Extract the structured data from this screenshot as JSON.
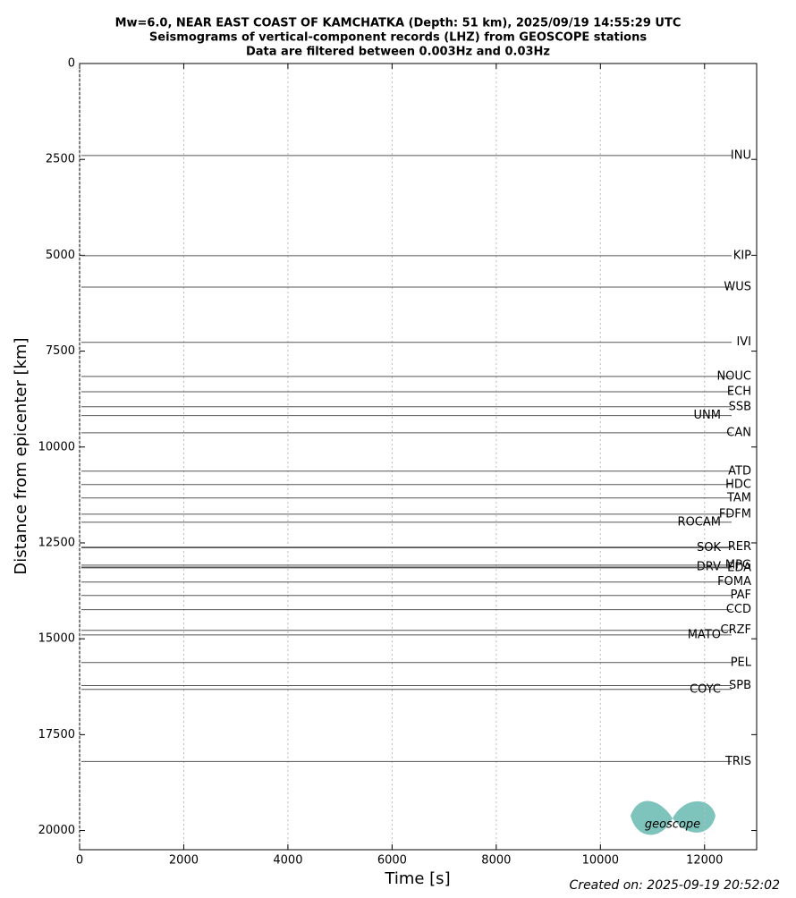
{
  "chart_data": {
    "type": "seismogram",
    "title_lines": [
      "Mw=6.0, NEAR EAST COAST OF KAMCHATKA (Depth: 51 km), 2025/09/19 14:55:29 UTC",
      "Seismograms of vertical-component records (LHZ) from GEOSCOPE stations",
      "Data are filtered between 0.003Hz and 0.03Hz"
    ],
    "xlabel": "Time [s]",
    "ylabel": "Distance from epicenter [km]",
    "xlim": [
      0,
      13000
    ],
    "xticks": [
      0,
      2000,
      4000,
      6000,
      8000,
      10000,
      12000
    ],
    "ylim": [
      20500,
      0
    ],
    "yticks": [
      0,
      2500,
      5000,
      7500,
      10000,
      12500,
      15000,
      17500,
      20000
    ],
    "grid": true,
    "color": "#555555",
    "stations": [
      "INU",
      "KIP",
      "WUS",
      "IVI",
      "NOUC",
      "ECH",
      "SSB",
      "UNM",
      "CAN",
      "ATD",
      "HDC",
      "TAM",
      "FDFM",
      "ROCAM",
      "RER",
      "SOK",
      "MPG",
      "DRV",
      "EDA",
      "FOMA",
      "PAF",
      "CCD",
      "CRZF",
      "MATO",
      "PEL",
      "SPB",
      "COYC",
      "TRIS"
    ],
    "distances": [
      2400,
      5010,
      5830,
      7270,
      8160,
      8560,
      8950,
      9180,
      9630,
      10630,
      10980,
      11330,
      11750,
      11960,
      12610,
      12630,
      13080,
      13130,
      13150,
      13520,
      13870,
      14240,
      14780,
      14900,
      15620,
      16220,
      16320,
      18200
    ],
    "footer": "Created on: 2025-09-19 20:52:02",
    "logo": "geoscope"
  }
}
